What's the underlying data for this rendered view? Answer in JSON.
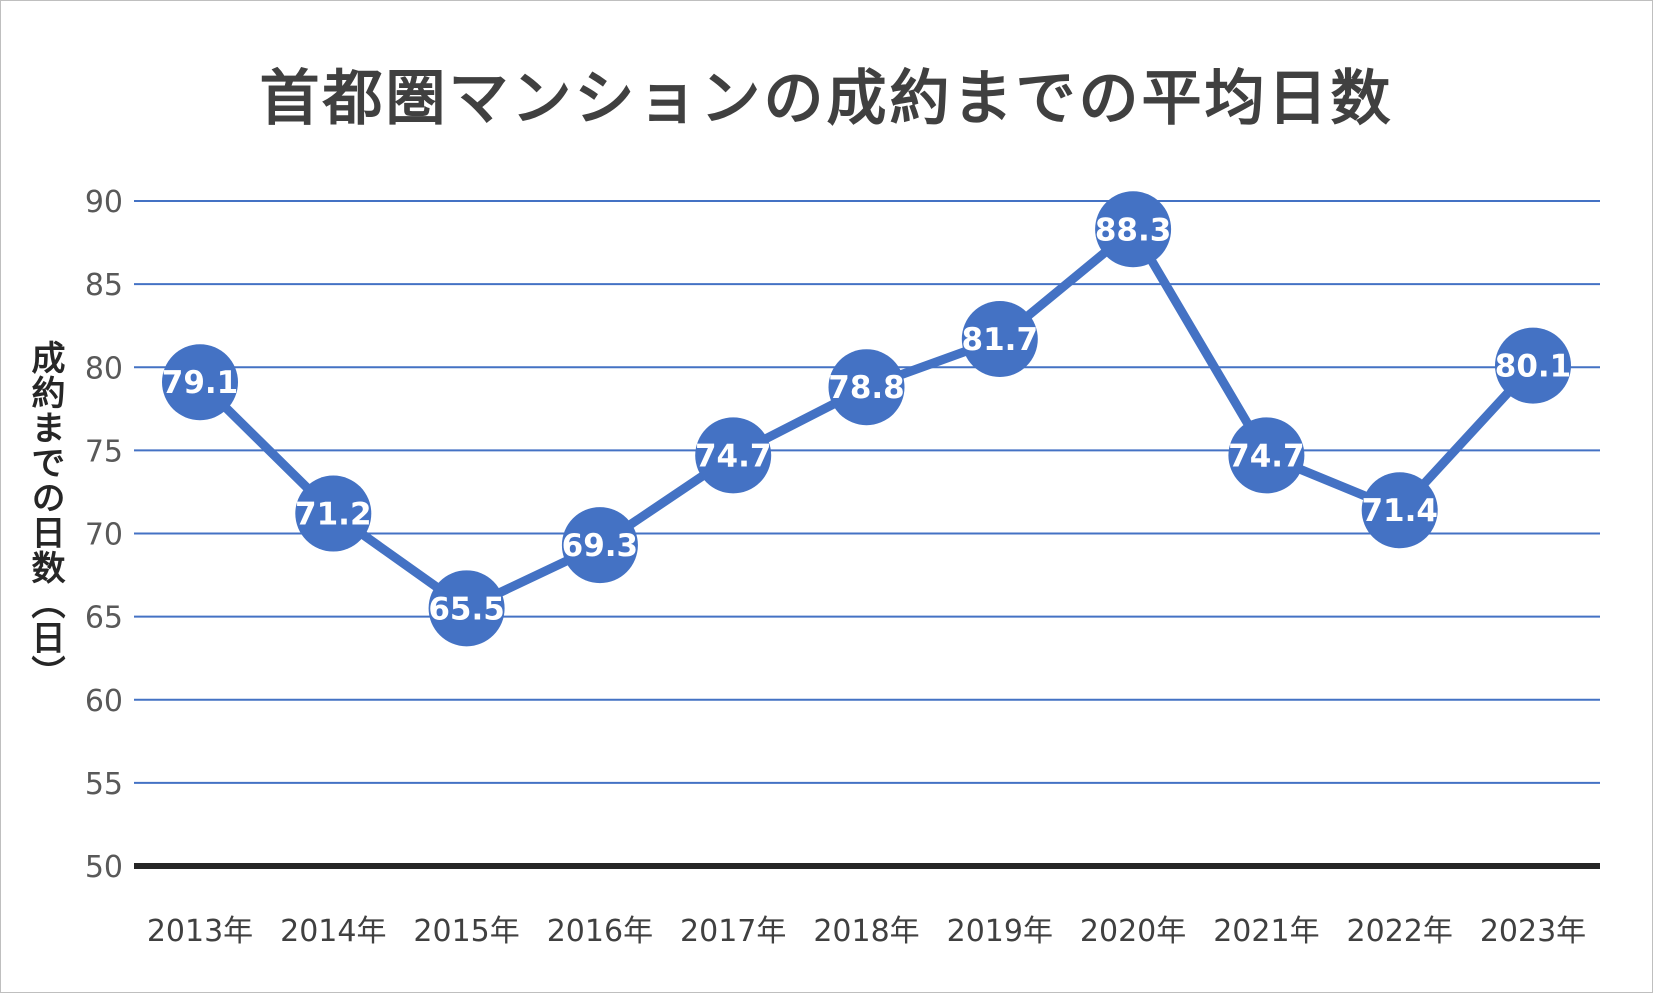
{
  "chart_data": {
    "type": "line",
    "title": "首都圏マンションの成約までの平均日数",
    "xlabel": "",
    "ylabel": "成約までの日数（日）",
    "categories": [
      "2013年",
      "2014年",
      "2015年",
      "2016年",
      "2017年",
      "2018年",
      "2019年",
      "2020年",
      "2021年",
      "2022年",
      "2023年"
    ],
    "series": [
      {
        "values": [
          79.1,
          71.2,
          65.5,
          69.3,
          74.7,
          78.8,
          81.7,
          88.3,
          74.7,
          71.4,
          80.1
        ],
        "color": "#4472c4"
      }
    ],
    "ylim": [
      50,
      90
    ],
    "yticks": [
      50,
      55,
      60,
      65,
      70,
      75,
      80,
      85,
      90
    ],
    "grid": true,
    "legend": "none",
    "data_labels": true,
    "colors": {
      "gridline": "#4472c4",
      "axis": "#262626",
      "marker": "#4472c4",
      "label_text": "#ffffff"
    }
  }
}
